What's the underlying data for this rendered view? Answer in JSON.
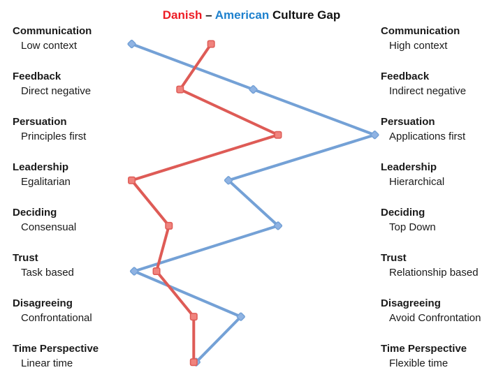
{
  "title": {
    "danish": "Danish",
    "separator": " – ",
    "american": "American",
    "suffix": " Culture Gap",
    "danish_color": "#ED1C24",
    "american_color": "#1E81CE",
    "text_color": "#111111"
  },
  "chart_data": {
    "type": "line",
    "title": "Danish – American Culture Gap",
    "orientation": "vertical categories, horizontal value scale",
    "xlim": [
      0,
      100
    ],
    "grid": false,
    "legend_position": "in-title",
    "categories": [
      {
        "label": "Communication",
        "danish_trait": "Low context",
        "american_trait": "High context"
      },
      {
        "label": "Feedback",
        "danish_trait": "Direct negative",
        "american_trait": "Indirect negative"
      },
      {
        "label": "Persuation",
        "danish_trait": "Principles first",
        "american_trait": "Applications first"
      },
      {
        "label": "Leadership",
        "danish_trait": "Egalitarian",
        "american_trait": "Hierarchical"
      },
      {
        "label": "Deciding",
        "danish_trait": "Consensual",
        "american_trait": "Top Down"
      },
      {
        "label": "Trust",
        "danish_trait": "Task based",
        "american_trait": "Relationship based"
      },
      {
        "label": "Disagreeing",
        "danish_trait": "Confrontational",
        "american_trait": "Avoid Confrontation"
      },
      {
        "label": "Time Perspective",
        "danish_trait": "Linear time",
        "american_trait": "Flexible time"
      }
    ],
    "series": [
      {
        "name": "Danish",
        "marker": "square",
        "color": "#DE5B56",
        "marker_fill": "#F0837D",
        "values": [
          33,
          20.5,
          60,
          1,
          16,
          11,
          26,
          26
        ]
      },
      {
        "name": "American",
        "marker": "diamond",
        "color": "#74A1D6",
        "marker_fill": "#8FB3E3",
        "values": [
          1,
          50,
          99,
          40,
          60,
          2,
          45,
          27
        ]
      }
    ]
  }
}
